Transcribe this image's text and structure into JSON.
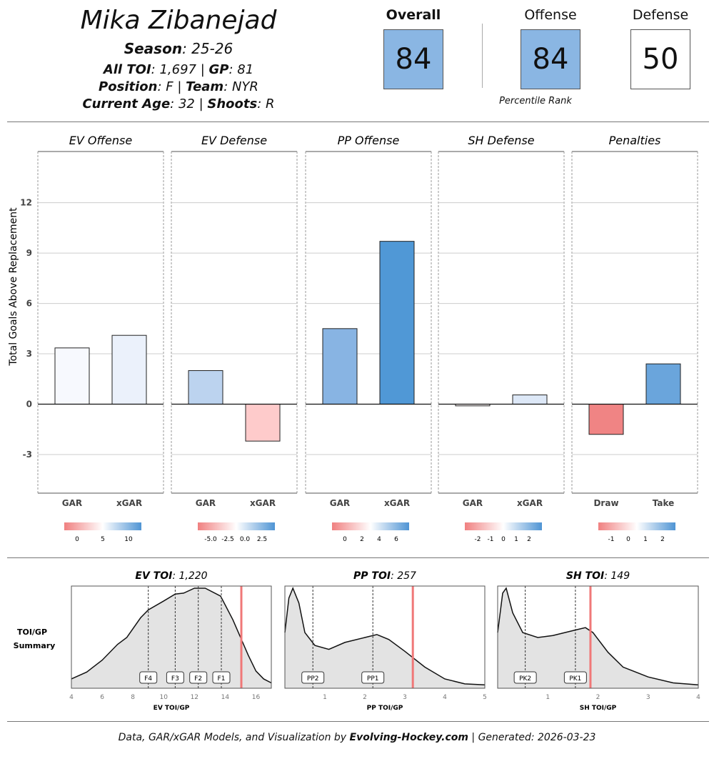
{
  "player": {
    "name": "Mika Zibanejad",
    "season_label": "Season",
    "season": ": 25-26",
    "toi_label": "All TOI",
    "toi": ": 1,697 | ",
    "gp_label": "GP",
    "gp": ": 81",
    "pos_label": "Position",
    "pos": ": F | ",
    "team_label": "Team",
    "team": ": NYR",
    "age_label": "Current Age",
    "age": ": 32 | ",
    "shoots_label": "Shoots",
    "shoots": ": R"
  },
  "scores": {
    "overall_label": "Overall",
    "overall": "84",
    "offense_label": "Offense",
    "offense": "84",
    "defense_label": "Defense",
    "defense": "50",
    "note": "Percentile Rank",
    "colors": {
      "overall": "#8ab6e3",
      "offense": "#8ab6e3",
      "defense": "#ffffff"
    }
  },
  "chart_data": [
    {
      "type": "bar",
      "ylabel": "Total Goals Above Replacement",
      "ylim": [
        -5.3,
        15.05
      ],
      "yticks": [
        -3,
        0,
        3,
        6,
        9,
        12
      ],
      "panels": [
        {
          "title": "EV Offense",
          "categories": [
            "GAR",
            "xGAR"
          ],
          "values": [
            3.35,
            4.1
          ],
          "colors": [
            "#f7f9fe",
            "#ebf1fb"
          ],
          "legend_ticks": [
            "0",
            "5",
            "10"
          ]
        },
        {
          "title": "EV Defense",
          "categories": [
            "GAR",
            "xGAR"
          ],
          "values": [
            2.0,
            -2.2
          ],
          "colors": [
            "#bcd3ef",
            "#fecbcb"
          ],
          "legend_ticks": [
            "-5.0",
            "-2.5",
            "0.0",
            "2.5"
          ]
        },
        {
          "title": "PP Offense",
          "categories": [
            "GAR",
            "xGAR"
          ],
          "values": [
            4.5,
            9.7
          ],
          "colors": [
            "#88b4e3",
            "#5098d6"
          ],
          "legend_ticks": [
            "0",
            "2",
            "4",
            "6"
          ]
        },
        {
          "title": "SH Defense",
          "categories": [
            "GAR",
            "xGAR"
          ],
          "values": [
            -0.1,
            0.55
          ],
          "colors": [
            "#fdf6f6",
            "#dde8f7"
          ],
          "legend_ticks": [
            "-2",
            "-1",
            "0",
            "1",
            "2"
          ]
        },
        {
          "title": "Penalties",
          "categories": [
            "Draw",
            "Take"
          ],
          "values": [
            -1.8,
            2.4
          ],
          "colors": [
            "#f08484",
            "#6aa5dc"
          ],
          "legend_ticks": [
            "-1",
            "0",
            "1",
            "2"
          ]
        }
      ]
    },
    {
      "type": "area",
      "side_label": "TOI/GP Summary",
      "panels": [
        {
          "title": "EV TOI",
          "total": ": 1,220",
          "xlabel": "EV TOI/GP",
          "xlim": [
            4,
            17
          ],
          "xticks": [
            4,
            6,
            8,
            10,
            12,
            14,
            16
          ],
          "player_value": 15.05,
          "markers": [
            {
              "label": "F4",
              "x": 9.0
            },
            {
              "label": "F3",
              "x": 10.75
            },
            {
              "label": "F2",
              "x": 12.25
            },
            {
              "label": "F1",
              "x": 13.75
            }
          ],
          "density": [
            [
              4,
              0.08
            ],
            [
              5,
              0.15
            ],
            [
              6,
              0.27
            ],
            [
              7,
              0.43
            ],
            [
              7.6,
              0.5
            ],
            [
              8.5,
              0.7
            ],
            [
              9,
              0.78
            ],
            [
              10,
              0.87
            ],
            [
              10.75,
              0.94
            ],
            [
              11.3,
              0.95
            ],
            [
              12,
              1.0
            ],
            [
              12.7,
              1.0
            ],
            [
              13.7,
              0.92
            ],
            [
              14.5,
              0.68
            ],
            [
              15,
              0.5
            ],
            [
              15.5,
              0.32
            ],
            [
              16,
              0.16
            ],
            [
              16.5,
              0.08
            ],
            [
              17,
              0.04
            ]
          ]
        },
        {
          "title": "PP TOI",
          "total": ": 257",
          "xlabel": "PP TOI/GP",
          "xlim": [
            0,
            5
          ],
          "xticks": [
            1,
            2,
            3,
            4,
            5
          ],
          "player_value": 3.2,
          "markers": [
            {
              "label": "PP2",
              "x": 0.7
            },
            {
              "label": "PP1",
              "x": 2.2
            }
          ],
          "density": [
            [
              0,
              0.55
            ],
            [
              0.1,
              0.9
            ],
            [
              0.2,
              1.0
            ],
            [
              0.35,
              0.85
            ],
            [
              0.5,
              0.55
            ],
            [
              0.75,
              0.42
            ],
            [
              1.1,
              0.38
            ],
            [
              1.5,
              0.45
            ],
            [
              2.0,
              0.5
            ],
            [
              2.3,
              0.53
            ],
            [
              2.6,
              0.48
            ],
            [
              3.0,
              0.36
            ],
            [
              3.5,
              0.2
            ],
            [
              4,
              0.08
            ],
            [
              4.5,
              0.03
            ],
            [
              5,
              0.02
            ]
          ]
        },
        {
          "title": "SH TOI",
          "total": ": 149",
          "xlabel": "SH TOI/GP",
          "xlim": [
            0,
            4
          ],
          "xticks": [
            1,
            2,
            3,
            4
          ],
          "player_value": 1.85,
          "markers": [
            {
              "label": "PK2",
              "x": 0.55
            },
            {
              "label": "PK1",
              "x": 1.55
            }
          ],
          "density": [
            [
              0,
              0.55
            ],
            [
              0.1,
              0.95
            ],
            [
              0.17,
              1.0
            ],
            [
              0.3,
              0.75
            ],
            [
              0.5,
              0.55
            ],
            [
              0.8,
              0.5
            ],
            [
              1.1,
              0.52
            ],
            [
              1.5,
              0.57
            ],
            [
              1.75,
              0.6
            ],
            [
              1.9,
              0.55
            ],
            [
              2.2,
              0.35
            ],
            [
              2.5,
              0.2
            ],
            [
              3,
              0.1
            ],
            [
              3.5,
              0.04
            ],
            [
              4,
              0.02
            ]
          ]
        }
      ]
    }
  ],
  "footer": {
    "a": "Data, GAR/xGAR Models, and Visualization by ",
    "b": "Evolving-Hockey.com",
    "c": " | Generated: 2026-03-23"
  }
}
